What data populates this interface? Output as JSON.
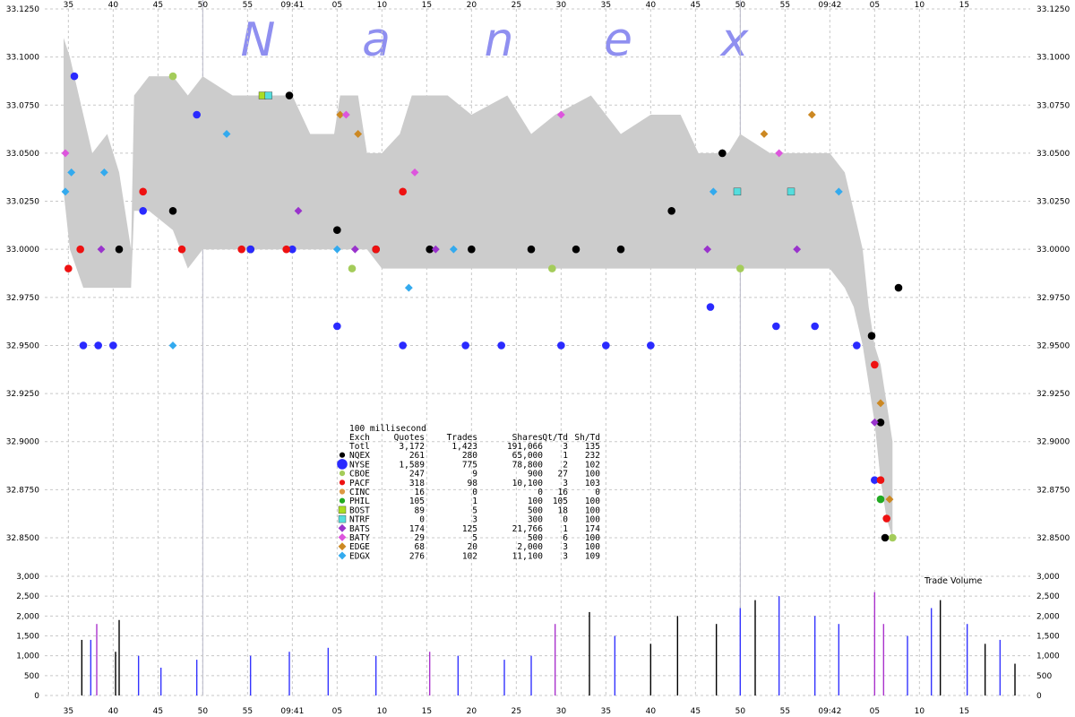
{
  "chart_data": {
    "type": "scatter",
    "watermark": [
      "N",
      "a",
      "n",
      "e",
      "x"
    ],
    "x_ticks": [
      "35",
      "40",
      "45",
      "50",
      "55",
      "09:41",
      "05",
      "10",
      "15",
      "20",
      "25",
      "30",
      "35",
      "40",
      "45",
      "50",
      "55",
      "09:42",
      "05",
      "10",
      "15"
    ],
    "y_ticks": [
      "33.1250",
      "33.1000",
      "33.0750",
      "33.0500",
      "33.0250",
      "33.0000",
      "32.9750",
      "32.9500",
      "32.9250",
      "32.9000",
      "32.8750",
      "32.8500"
    ],
    "ylim": [
      32.84,
      33.125
    ],
    "volume": {
      "title": "Trade Volume",
      "y_ticks": [
        "3,000",
        "2,500",
        "2,000",
        "1,500",
        "1,000",
        "500",
        "0"
      ],
      "ylim": [
        0,
        3000
      ],
      "spikes": [
        {
          "t": 139.5,
          "v": 1400,
          "c": "#000000"
        },
        {
          "t": 142.5,
          "v": 1400,
          "c": "#3333ff"
        },
        {
          "t": 144.5,
          "v": 1800,
          "c": "#aa33cc"
        },
        {
          "t": 150.8,
          "v": 1100,
          "c": "#000000"
        },
        {
          "t": 152,
          "v": 1900,
          "c": "#000000"
        },
        {
          "t": 158.5,
          "v": 1000,
          "c": "#3333ff"
        },
        {
          "t": 166,
          "v": 700,
          "c": "#3333ff"
        },
        {
          "t": 178,
          "v": 900,
          "c": "#3333ff"
        },
        {
          "t": 196,
          "v": 1000,
          "c": "#3333ff"
        },
        {
          "t": 209,
          "v": 1100,
          "c": "#3333ff"
        },
        {
          "t": 222,
          "v": 1200,
          "c": "#3333ff"
        },
        {
          "t": 238,
          "v": 1000,
          "c": "#3333ff"
        },
        {
          "t": 256,
          "v": 1100,
          "c": "#aa33cc"
        },
        {
          "t": 265.5,
          "v": 1000,
          "c": "#3333ff"
        },
        {
          "t": 281,
          "v": 900,
          "c": "#3333ff"
        },
        {
          "t": 290,
          "v": 1000,
          "c": "#3333ff"
        },
        {
          "t": 298,
          "v": 1800,
          "c": "#aa33cc"
        },
        {
          "t": 309.5,
          "v": 2100,
          "c": "#000000"
        },
        {
          "t": 318,
          "v": 1500,
          "c": "#3333ff"
        },
        {
          "t": 330,
          "v": 1300,
          "c": "#000000"
        },
        {
          "t": 339,
          "v": 2000,
          "c": "#000000"
        },
        {
          "t": 352,
          "v": 1800,
          "c": "#000000"
        },
        {
          "t": 360,
          "v": 2200,
          "c": "#3333ff"
        },
        {
          "t": 365,
          "v": 2400,
          "c": "#000000"
        },
        {
          "t": 373,
          "v": 2500,
          "c": "#3333ff"
        },
        {
          "t": 385,
          "v": 2000,
          "c": "#3333ff"
        },
        {
          "t": 393,
          "v": 1800,
          "c": "#3333ff"
        },
        {
          "t": 405,
          "v": 2600,
          "c": "#aa33cc"
        },
        {
          "t": 408,
          "v": 1800,
          "c": "#aa33cc"
        },
        {
          "t": 416,
          "v": 1500,
          "c": "#3333ff"
        },
        {
          "t": 424,
          "v": 2200,
          "c": "#3333ff"
        },
        {
          "t": 427,
          "v": 2400,
          "c": "#000000"
        },
        {
          "t": 436,
          "v": 1800,
          "c": "#3333ff"
        },
        {
          "t": 442,
          "v": 1300,
          "c": "#000000"
        },
        {
          "t": 447,
          "v": 1400,
          "c": "#3333ff"
        },
        {
          "t": 452,
          "v": 800,
          "c": "#000000"
        }
      ]
    },
    "table": {
      "title": "100 millisecond",
      "headers": [
        "Exch",
        "Quotes",
        "Trades",
        "Shares",
        "Qt/Td",
        "Sh/Td"
      ],
      "rows": [
        {
          "exch": "Totl",
          "quotes": "3,172",
          "trades": "1,423",
          "shares": "191,066",
          "qt_td": "3",
          "sh_td": "135",
          "color": "",
          "marker": "none"
        },
        {
          "exch": "NQEX",
          "quotes": "261",
          "trades": "280",
          "shares": "65,000",
          "qt_td": "1",
          "sh_td": "232",
          "color": "#000000",
          "marker": "circle"
        },
        {
          "exch": "NYSE",
          "quotes": "1,589",
          "trades": "775",
          "shares": "78,800",
          "qt_td": "2",
          "sh_td": "102",
          "color": "#2a2aff",
          "marker": "circle-big"
        },
        {
          "exch": "CBOE",
          "quotes": "247",
          "trades": "9",
          "shares": "900",
          "qt_td": "27",
          "sh_td": "100",
          "color": "#a4cc5a",
          "marker": "circle"
        },
        {
          "exch": "PACF",
          "quotes": "318",
          "trades": "98",
          "shares": "10,100",
          "qt_td": "3",
          "sh_td": "103",
          "color": "#ee1111",
          "marker": "circle"
        },
        {
          "exch": "CINC",
          "quotes": "16",
          "trades": "0",
          "shares": "0",
          "qt_td": "16",
          "sh_td": "0",
          "color": "#dd9944",
          "marker": "circle"
        },
        {
          "exch": "PHIL",
          "quotes": "105",
          "trades": "1",
          "shares": "100",
          "qt_td": "105",
          "sh_td": "100",
          "color": "#22aa22",
          "marker": "circle"
        },
        {
          "exch": "BOST",
          "quotes": "89",
          "trades": "5",
          "shares": "500",
          "qt_td": "18",
          "sh_td": "100",
          "color": "#aadd22",
          "marker": "square"
        },
        {
          "exch": "NTRF",
          "quotes": "0",
          "trades": "3",
          "shares": "300",
          "qt_td": "0",
          "sh_td": "100",
          "color": "#55dddd",
          "marker": "square"
        },
        {
          "exch": "BATS",
          "quotes": "174",
          "trades": "125",
          "shares": "21,766",
          "qt_td": "1",
          "sh_td": "174",
          "color": "#9933cc",
          "marker": "diamond"
        },
        {
          "exch": "BATY",
          "quotes": "29",
          "trades": "5",
          "shares": "500",
          "qt_td": "6",
          "sh_td": "100",
          "color": "#dd55dd",
          "marker": "diamond"
        },
        {
          "exch": "EDGE",
          "quotes": "68",
          "trades": "20",
          "shares": "2,000",
          "qt_td": "3",
          "sh_td": "100",
          "color": "#cc8822",
          "marker": "diamond"
        },
        {
          "exch": "EDGX",
          "quotes": "276",
          "trades": "102",
          "shares": "11,100",
          "qt_td": "3",
          "sh_td": "109",
          "color": "#33aaee",
          "marker": "diamond"
        }
      ]
    },
    "nbbo_envelope": [
      {
        "t": 133.4,
        "bid": 33.03,
        "ask": 33.11
      },
      {
        "t": 135.5,
        "bid": 33.0,
        "ask": 33.1
      },
      {
        "t": 140,
        "bid": 32.98,
        "ask": 33.07
      },
      {
        "t": 143,
        "bid": 32.98,
        "ask": 33.05
      },
      {
        "t": 148,
        "bid": 32.98,
        "ask": 33.06
      },
      {
        "t": 152,
        "bid": 32.98,
        "ask": 33.04
      },
      {
        "t": 156,
        "bid": 32.98,
        "ask": 33.0
      },
      {
        "t": 157,
        "bid": 33.02,
        "ask": 33.08
      },
      {
        "t": 162,
        "bid": 33.02,
        "ask": 33.09
      },
      {
        "t": 170,
        "bid": 33.01,
        "ask": 33.09
      },
      {
        "t": 175,
        "bid": 32.99,
        "ask": 33.08
      },
      {
        "t": 180,
        "bid": 33.0,
        "ask": 33.09
      },
      {
        "t": 190,
        "bid": 33.0,
        "ask": 33.08
      },
      {
        "t": 200,
        "bid": 33.0,
        "ask": 33.08
      },
      {
        "t": 210,
        "bid": 33.0,
        "ask": 33.08
      },
      {
        "t": 216,
        "bid": 33.0,
        "ask": 33.06
      },
      {
        "t": 224,
        "bid": 33.0,
        "ask": 33.06
      },
      {
        "t": 226,
        "bid": 33.0,
        "ask": 33.08
      },
      {
        "t": 232,
        "bid": 33.0,
        "ask": 33.08
      },
      {
        "t": 235,
        "bid": 33.0,
        "ask": 33.05
      },
      {
        "t": 240,
        "bid": 32.99,
        "ask": 33.05
      },
      {
        "t": 246,
        "bid": 32.99,
        "ask": 33.06
      },
      {
        "t": 250,
        "bid": 32.99,
        "ask": 33.08
      },
      {
        "t": 262,
        "bid": 32.99,
        "ask": 33.08
      },
      {
        "t": 270,
        "bid": 32.99,
        "ask": 33.07
      },
      {
        "t": 282,
        "bid": 32.99,
        "ask": 33.08
      },
      {
        "t": 290,
        "bid": 32.99,
        "ask": 33.06
      },
      {
        "t": 298,
        "bid": 32.99,
        "ask": 33.07
      },
      {
        "t": 310,
        "bid": 32.99,
        "ask": 33.08
      },
      {
        "t": 320,
        "bid": 32.99,
        "ask": 33.06
      },
      {
        "t": 330,
        "bid": 32.99,
        "ask": 33.07
      },
      {
        "t": 340,
        "bid": 32.99,
        "ask": 33.07
      },
      {
        "t": 346,
        "bid": 32.99,
        "ask": 33.05
      },
      {
        "t": 352,
        "bid": 32.99,
        "ask": 33.05
      },
      {
        "t": 356,
        "bid": 32.99,
        "ask": 33.05
      },
      {
        "t": 360,
        "bid": 32.99,
        "ask": 33.06
      },
      {
        "t": 370,
        "bid": 32.99,
        "ask": 33.05
      },
      {
        "t": 378,
        "bid": 32.99,
        "ask": 33.05
      },
      {
        "t": 384,
        "bid": 32.99,
        "ask": 33.05
      },
      {
        "t": 390,
        "bid": 32.99,
        "ask": 33.05
      },
      {
        "t": 395,
        "bid": 32.98,
        "ask": 33.04
      },
      {
        "t": 398,
        "bid": 32.97,
        "ask": 33.02
      },
      {
        "t": 401,
        "bid": 32.95,
        "ask": 33.0
      },
      {
        "t": 403,
        "bid": 32.93,
        "ask": 32.97
      },
      {
        "t": 405,
        "bid": 32.91,
        "ask": 32.95
      },
      {
        "t": 407,
        "bid": 32.88,
        "ask": 32.94
      },
      {
        "t": 409,
        "bid": 32.86,
        "ask": 32.92
      },
      {
        "t": 411,
        "bid": 32.85,
        "ask": 32.9
      }
    ],
    "series": [
      {
        "name": "NQEX",
        "color": "#000000",
        "marker": "circle",
        "points": [
          {
            "t": 152,
            "y": 33.0
          },
          {
            "t": 170,
            "y": 33.02
          },
          {
            "t": 196,
            "y": 33.0
          },
          {
            "t": 209,
            "y": 33.08
          },
          {
            "t": 225,
            "y": 33.01
          },
          {
            "t": 238,
            "y": 33.0
          },
          {
            "t": 256,
            "y": 33.0
          },
          {
            "t": 270,
            "y": 33.0
          },
          {
            "t": 290,
            "y": 33.0
          },
          {
            "t": 305,
            "y": 33.0
          },
          {
            "t": 320,
            "y": 33.0
          },
          {
            "t": 337,
            "y": 33.02
          },
          {
            "t": 354,
            "y": 33.05
          },
          {
            "t": 404,
            "y": 32.955
          },
          {
            "t": 407,
            "y": 32.91
          },
          {
            "t": 408.5,
            "y": 32.85
          },
          {
            "t": 413,
            "y": 32.98
          }
        ]
      },
      {
        "name": "NYSE",
        "color": "#2a2aff",
        "marker": "circle",
        "points": [
          {
            "t": 137,
            "y": 33.09
          },
          {
            "t": 140,
            "y": 32.95
          },
          {
            "t": 145,
            "y": 32.95
          },
          {
            "t": 150,
            "y": 32.95
          },
          {
            "t": 160,
            "y": 33.02
          },
          {
            "t": 178,
            "y": 33.07
          },
          {
            "t": 196,
            "y": 33.0
          },
          {
            "t": 210,
            "y": 33.0
          },
          {
            "t": 225,
            "y": 32.96
          },
          {
            "t": 247,
            "y": 32.95
          },
          {
            "t": 268,
            "y": 32.95
          },
          {
            "t": 280,
            "y": 32.95
          },
          {
            "t": 300,
            "y": 32.95
          },
          {
            "t": 315,
            "y": 32.95
          },
          {
            "t": 330,
            "y": 32.95
          },
          {
            "t": 350,
            "y": 32.97
          },
          {
            "t": 372,
            "y": 32.96
          },
          {
            "t": 385,
            "y": 32.96
          },
          {
            "t": 399,
            "y": 32.95
          },
          {
            "t": 405,
            "y": 32.88
          }
        ]
      },
      {
        "name": "PACF",
        "color": "#ee1111",
        "marker": "circle",
        "points": [
          {
            "t": 135,
            "y": 32.99
          },
          {
            "t": 139,
            "y": 33.0
          },
          {
            "t": 160,
            "y": 33.03
          },
          {
            "t": 173,
            "y": 33.0
          },
          {
            "t": 193,
            "y": 33.0
          },
          {
            "t": 208,
            "y": 33.0
          },
          {
            "t": 238,
            "y": 33.0
          },
          {
            "t": 247,
            "y": 33.03
          },
          {
            "t": 405,
            "y": 32.94
          },
          {
            "t": 407,
            "y": 32.88
          },
          {
            "t": 409,
            "y": 32.86
          }
        ]
      },
      {
        "name": "BATS",
        "color": "#9933cc",
        "marker": "diamond",
        "points": [
          {
            "t": 146,
            "y": 33.0
          },
          {
            "t": 212,
            "y": 33.02
          },
          {
            "t": 231,
            "y": 33.0
          },
          {
            "t": 258,
            "y": 33.0
          },
          {
            "t": 349,
            "y": 33.0
          },
          {
            "t": 379,
            "y": 33.0
          },
          {
            "t": 405,
            "y": 32.91
          }
        ]
      },
      {
        "name": "EDGX",
        "color": "#33aaee",
        "marker": "diamond",
        "points": [
          {
            "t": 134,
            "y": 33.03
          },
          {
            "t": 136,
            "y": 33.04
          },
          {
            "t": 147,
            "y": 33.04
          },
          {
            "t": 170,
            "y": 32.95
          },
          {
            "t": 188,
            "y": 33.06
          },
          {
            "t": 225,
            "y": 33.0
          },
          {
            "t": 249,
            "y": 32.98
          },
          {
            "t": 264,
            "y": 33.0
          },
          {
            "t": 351,
            "y": 33.03
          },
          {
            "t": 393,
            "y": 33.03
          }
        ]
      },
      {
        "name": "EDGE",
        "color": "#cc8822",
        "marker": "diamond",
        "points": [
          {
            "t": 226,
            "y": 33.07
          },
          {
            "t": 232,
            "y": 33.06
          },
          {
            "t": 368,
            "y": 33.06
          },
          {
            "t": 384,
            "y": 33.07
          },
          {
            "t": 407,
            "y": 32.92
          },
          {
            "t": 410,
            "y": 32.87
          }
        ]
      },
      {
        "name": "BATY",
        "color": "#dd55dd",
        "marker": "diamond",
        "points": [
          {
            "t": 134,
            "y": 33.05
          },
          {
            "t": 228,
            "y": 33.07
          },
          {
            "t": 251,
            "y": 33.04
          },
          {
            "t": 300,
            "y": 33.07
          },
          {
            "t": 373,
            "y": 33.05
          }
        ]
      },
      {
        "name": "CBOE",
        "color": "#a4cc5a",
        "marker": "circle",
        "points": [
          {
            "t": 170,
            "y": 33.09
          },
          {
            "t": 230,
            "y": 32.99
          },
          {
            "t": 297,
            "y": 32.99
          },
          {
            "t": 360,
            "y": 32.99
          },
          {
            "t": 411,
            "y": 32.85
          }
        ]
      },
      {
        "name": "PHIL",
        "color": "#22aa22",
        "marker": "circle",
        "points": [
          {
            "t": 407,
            "y": 32.87
          }
        ]
      },
      {
        "name": "BOST",
        "color": "#aadd22",
        "marker": "square",
        "points": [
          {
            "t": 200,
            "y": 33.08
          }
        ]
      },
      {
        "name": "NTRF",
        "color": "#55dddd",
        "marker": "square",
        "points": [
          {
            "t": 202,
            "y": 33.08
          },
          {
            "t": 359,
            "y": 33.03
          },
          {
            "t": 377,
            "y": 33.03
          }
        ]
      }
    ]
  }
}
